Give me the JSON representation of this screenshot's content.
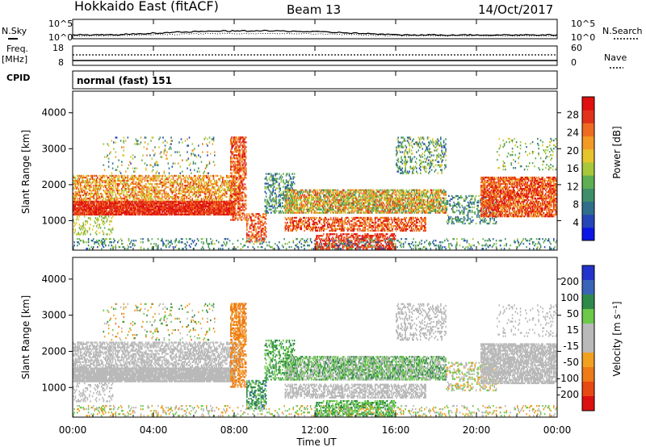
{
  "header": {
    "station": "Hokkaido East (fitACF)",
    "beam": "Beam 13",
    "date": "14/Oct/2017"
  },
  "top_panels": {
    "nsky_label": "N.Sky",
    "nsearch_label": "N.Search",
    "noise_ticks": [
      "10^5",
      "10^0"
    ],
    "freq_label_1": "Freq.",
    "freq_label_2": "[MHz]",
    "freq_ticks": [
      "18",
      "8"
    ],
    "nave_label": "Nave",
    "nave_ticks": [
      "60",
      "0"
    ],
    "cpid_label": "CPID",
    "cpid_text": "normal (fast) 151"
  },
  "chart_data": [
    {
      "type": "heatmap",
      "name": "power",
      "ylabel": "Slant Range [km]",
      "ylim": [
        180,
        4600
      ],
      "y_ticks": [
        1000,
        2000,
        3000,
        4000
      ],
      "colorbar": {
        "label": "Power [dB]",
        "min": 0,
        "max": 32,
        "ticks": [
          4,
          8,
          12,
          16,
          20,
          24,
          28
        ],
        "colors": [
          "#0a17e6",
          "#2546b8",
          "#2f6f8c",
          "#3e8e6a",
          "#5fae52",
          "#a8c83c",
          "#e6c42c",
          "#f29a25",
          "#f06b22",
          "#e2321c",
          "#e0100f"
        ]
      }
    },
    {
      "type": "heatmap",
      "name": "velocity",
      "ylabel": "Slant Range [km]",
      "ylim": [
        180,
        4600
      ],
      "y_ticks": [
        1000,
        2000,
        3000,
        4000
      ],
      "colorbar": {
        "label": "Velocity [m s⁻¹]",
        "ticks": [
          "200",
          "100",
          "50",
          "15",
          "-15",
          "-50",
          "-100",
          "-200"
        ],
        "colors": [
          "#2233cc",
          "#3a64b8",
          "#2f8a4a",
          "#6cc94a",
          "#b9b9b9",
          "#b9b9b9",
          "#f2a020",
          "#ee7a18",
          "#e84812",
          "#dd1010"
        ]
      }
    }
  ],
  "time_axis": {
    "label": "Time UT",
    "ticks": [
      "00:00",
      "04:00",
      "08:00",
      "12:00",
      "16:00",
      "20:00",
      "00:00"
    ],
    "range_hours": [
      0,
      24
    ]
  }
}
